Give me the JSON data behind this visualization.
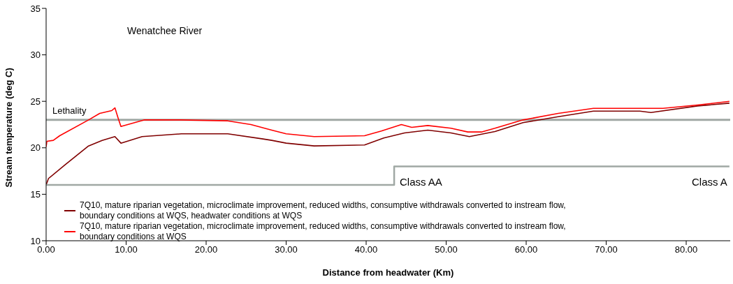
{
  "chart_data": {
    "type": "line",
    "xlabel": "Distance from headwater (Km)",
    "ylabel": "Stream temperature (deg C)",
    "xlim": [
      0,
      85.5
    ],
    "xticks": [
      {
        "value": 0,
        "label": "0.00"
      },
      {
        "value": 10,
        "label": "10.00"
      },
      {
        "value": 20,
        "label": "20.00"
      },
      {
        "value": 30,
        "label": "30.00"
      },
      {
        "value": 40,
        "label": "40.00"
      },
      {
        "value": 50,
        "label": "50.00"
      },
      {
        "value": 60,
        "label": "60.00"
      },
      {
        "value": 70,
        "label": "70.00"
      },
      {
        "value": 80,
        "label": "80.00"
      }
    ],
    "ylim": [
      10,
      35
    ],
    "yticks": [
      10,
      15,
      20,
      25,
      30,
      35
    ],
    "grid": false,
    "legend": "bottom",
    "marker": "none",
    "series": [
      {
        "name": "7Q10, mature riparian vegetation, microclimate improvement, reduced widths, consumptive withdrawals converted to instream flow, boundary conditions at WQS, headwater conditions at WQS",
        "color": "#800000",
        "x": [
          0,
          0.3,
          2.4,
          5.3,
          7.0,
          8.6,
          9.35,
          12.0,
          16.9,
          22.7,
          27.1,
          28.2,
          30.0,
          33.5,
          39.8,
          42.2,
          44.8,
          47.7,
          50.6,
          52.9,
          56.1,
          59.6,
          64.0,
          68.4,
          74.2,
          75.6,
          81.4,
          85.4
        ],
        "values": [
          16.0,
          16.7,
          18.2,
          20.2,
          20.8,
          21.2,
          20.5,
          21.2,
          21.5,
          21.5,
          20.95,
          20.8,
          20.5,
          20.2,
          20.3,
          21.05,
          21.6,
          21.9,
          21.6,
          21.2,
          21.75,
          22.7,
          23.35,
          23.95,
          23.95,
          23.8,
          24.5,
          24.8
        ]
      },
      {
        "name": "7Q10, mature riparian vegetation, microclimate improvement, reduced widths, consumptive withdrawals converted to instream flow, boundary conditions at WQS",
        "color": "#ff0000",
        "x": [
          0,
          0.1,
          0.9,
          1.7,
          5.3,
          6.7,
          8.2,
          8.6,
          9.0,
          9.35,
          12.3,
          16.9,
          22.7,
          25.6,
          28.2,
          30.0,
          33.5,
          39.8,
          41.9,
          44.4,
          45.7,
          47.7,
          50.6,
          52.7,
          54.4,
          56.1,
          59.6,
          64.0,
          68.4,
          72.7,
          77.1,
          81.4,
          85.4
        ],
        "values": [
          20.1,
          20.7,
          20.8,
          21.3,
          23.0,
          23.7,
          24.0,
          24.3,
          23.2,
          22.3,
          23.0,
          23.0,
          22.9,
          22.5,
          21.9,
          21.5,
          21.2,
          21.3,
          21.8,
          22.5,
          22.2,
          22.4,
          22.1,
          21.7,
          21.7,
          22.1,
          23.0,
          23.7,
          24.25,
          24.25,
          24.25,
          24.6,
          25.0
        ]
      },
      {
        "type": "step",
        "color": "#a0a8a4",
        "x": [
          0,
          42.9,
          43.5,
          85.4
        ],
        "values": [
          16,
          16,
          18,
          18
        ]
      }
    ],
    "ref_lines": [
      {
        "axis": "y",
        "value": 23,
        "label": "Lethality",
        "color": "#a0a8a4"
      }
    ],
    "annotations": [
      "Wenatchee River",
      "Class AA",
      "Class A"
    ]
  }
}
